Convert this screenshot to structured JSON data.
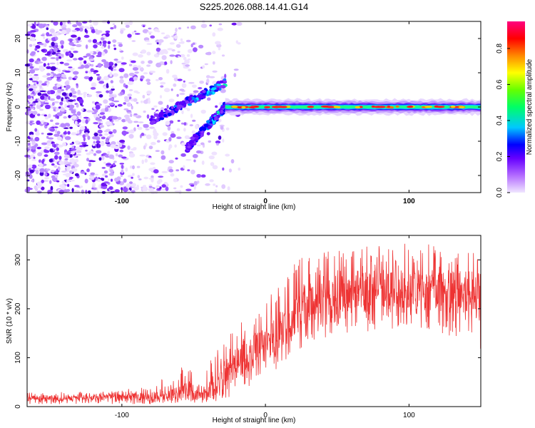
{
  "title": "S225.2026.088.14.41.G14",
  "chart_data": [
    {
      "type": "heatmap",
      "name": "spectrogram",
      "xlabel": "Height of straight line (km)",
      "ylabel": "Frequency (Hz)",
      "xlim": [
        -166,
        150
      ],
      "ylim": [
        -25,
        25
      ],
      "xticks": [
        -100,
        0,
        100
      ],
      "xticklabels": [
        "-100",
        "0",
        "100"
      ],
      "yticks": [
        -20,
        -10,
        0,
        10,
        20
      ],
      "yticklabels": [
        "-20",
        "-10",
        "0",
        "10",
        "20"
      ],
      "colorbar": {
        "label": "Normalized spectral amplitude",
        "range": [
          0.0,
          0.95
        ],
        "ticks": [
          0.0,
          0.2,
          0.4,
          0.6,
          0.8
        ],
        "ticklabels": [
          "0.0",
          "0.2",
          "0.4",
          "0.6",
          "0.8"
        ],
        "colors": [
          "#e8d4ff",
          "#8b00ff",
          "#0000ff",
          "#00ffff",
          "#00ff00",
          "#ffff00",
          "#ff0000",
          "#ff0080"
        ]
      },
      "features": {
        "noise_region_x": [
          -166,
          -30
        ],
        "tone_band": {
          "x": [
            -28,
            150
          ],
          "freq_hz": 0
        },
        "converging_branches": [
          {
            "x": [
              -80,
              -28
            ],
            "freq_hz": [
              -4,
              7
            ]
          },
          {
            "x": [
              -55,
              -28
            ],
            "freq_hz": [
              -12,
              0
            ]
          }
        ]
      }
    },
    {
      "type": "line",
      "name": "snr",
      "xlabel": "Height of straight line (km)",
      "ylabel": "SNR (10 * v/v)",
      "xlim": [
        -166,
        150
      ],
      "ylim": [
        0,
        350
      ],
      "xticks": [
        -100,
        0,
        100
      ],
      "xticklabels": [
        "-100",
        "0",
        "100"
      ],
      "yticks": [
        0,
        100,
        200,
        300
      ],
      "yticklabels": [
        "0",
        "100",
        "200",
        "300"
      ],
      "color": "#ee3333",
      "trend": {
        "x": [
          -166,
          -120,
          -80,
          -55,
          -45,
          -35,
          -25,
          -10,
          0,
          10,
          20,
          30,
          40,
          60,
          80,
          100,
          120,
          140,
          150
        ],
        "mean": [
          18,
          18,
          20,
          30,
          20,
          40,
          80,
          110,
          130,
          150,
          180,
          210,
          220,
          230,
          240,
          240,
          240,
          230,
          225
        ],
        "max": [
          30,
          30,
          40,
          90,
          40,
          120,
          150,
          200,
          230,
          250,
          300,
          310,
          320,
          330,
          330,
          345,
          335,
          330,
          320
        ],
        "min": [
          5,
          5,
          5,
          8,
          5,
          10,
          20,
          40,
          60,
          80,
          110,
          130,
          140,
          150,
          150,
          160,
          140,
          120,
          95
        ]
      }
    }
  ]
}
